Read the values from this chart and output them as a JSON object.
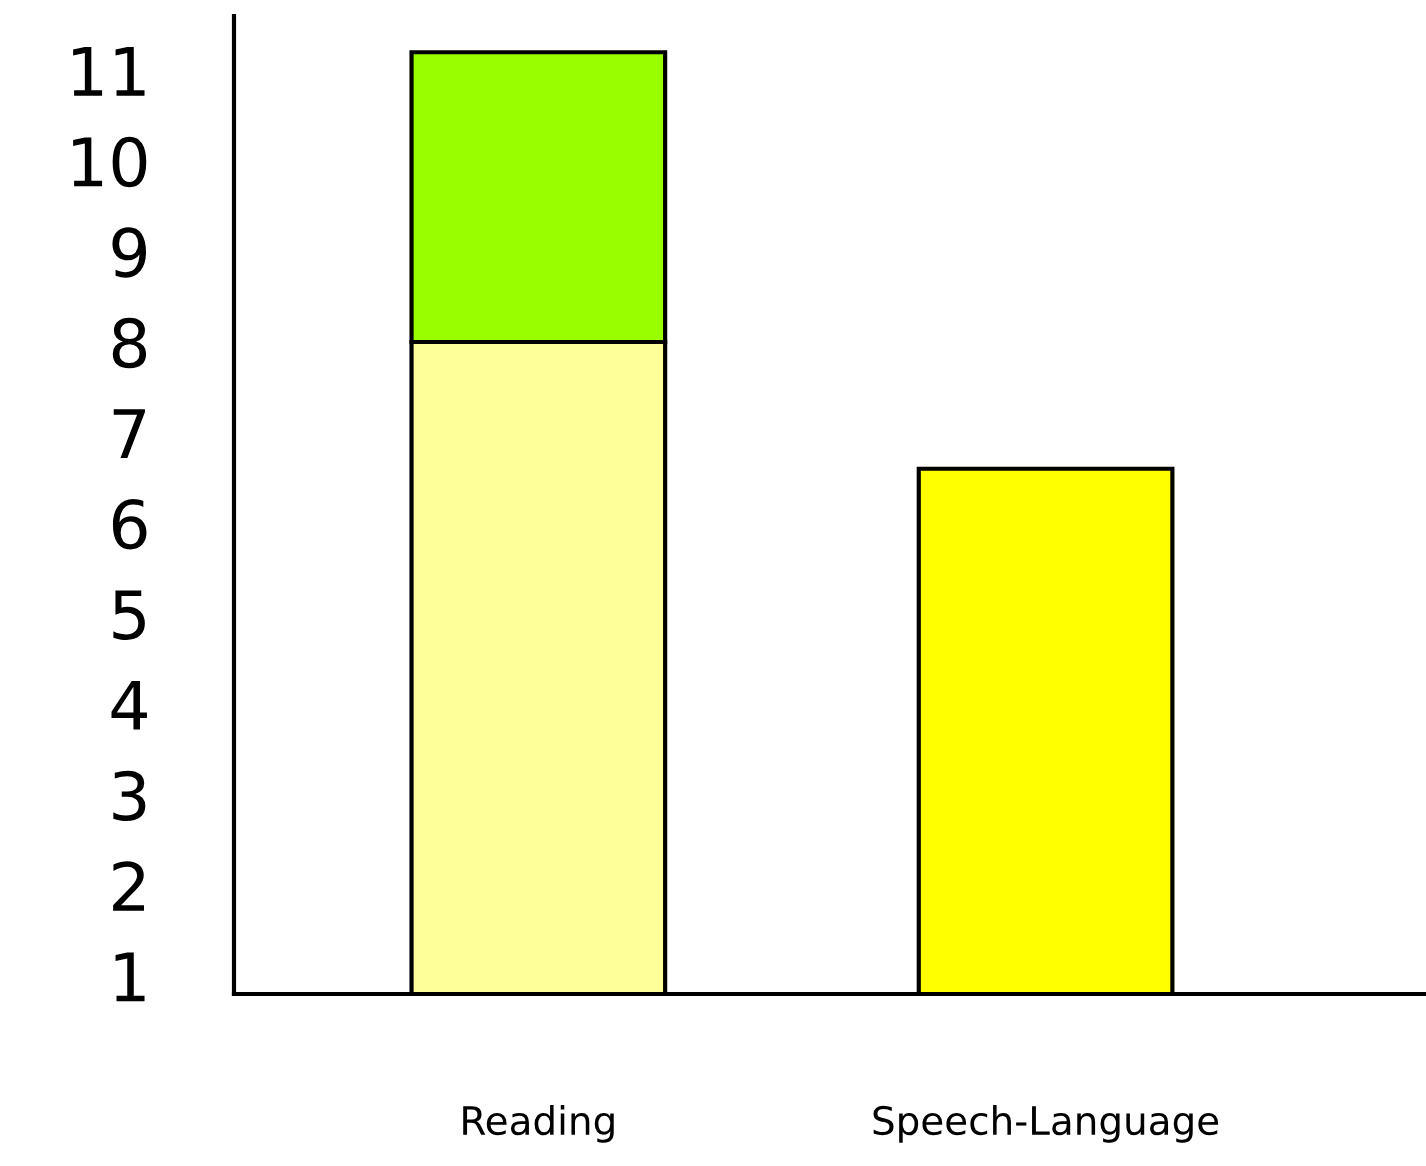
{
  "chart_data": {
    "type": "bar",
    "stacked": true,
    "categories": [
      "Reading",
      "Speech-Language"
    ],
    "series": [
      {
        "colors": [
          "#ffff99",
          "#ffff00"
        ],
        "values": [
          8,
          6.6
        ]
      },
      {
        "color": "#99ff00",
        "values": [
          3.2,
          null
        ]
      }
    ],
    "ylim": [
      0.8,
      11.6
    ],
    "yticks": [
      1,
      2,
      3,
      4,
      5,
      6,
      7,
      8,
      9,
      10,
      11
    ],
    "grid": false
  }
}
